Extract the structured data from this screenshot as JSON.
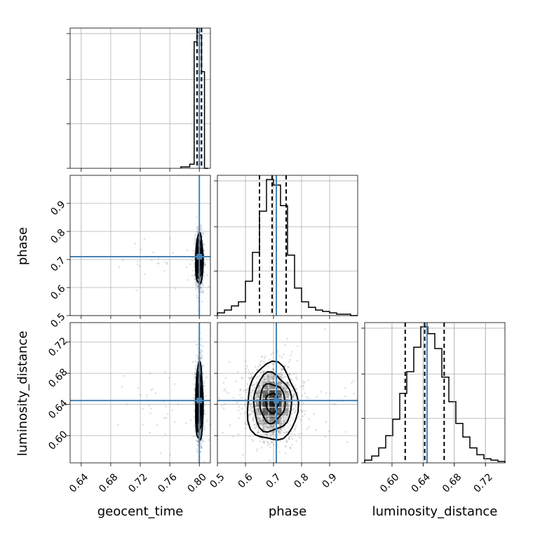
{
  "chart_data": {
    "type": "corner",
    "parameters": [
      "geocent_time",
      "phase",
      "luminosity_distance"
    ],
    "axis_labels": {
      "geocent_time": "geocent_time",
      "phase": "phase",
      "luminosity_distance": "luminosity_distance"
    },
    "ranges": {
      "geocent_time": [
        0.625,
        0.815
      ],
      "phase": [
        0.5,
        1.0
      ],
      "luminosity_distance": [
        0.565,
        0.745
      ]
    },
    "ticks": {
      "geocent_time": [
        "0.64",
        "0.68",
        "0.72",
        "0.76",
        "0.80"
      ],
      "phase": [
        "0.5",
        "0.6",
        "0.7",
        "0.8",
        "0.9"
      ],
      "luminosity_distance": [
        "0.60",
        "0.64",
        "0.68",
        "0.72"
      ]
    },
    "truths": {
      "geocent_time": 0.8,
      "phase": 0.71,
      "luminosity_distance": 0.645
    },
    "quantiles": {
      "geocent_time": [
        0.797,
        0.8,
        0.803
      ],
      "phase": [
        0.65,
        0.695,
        0.745
      ],
      "luminosity_distance": [
        0.617,
        0.642,
        0.667
      ]
    },
    "histograms": {
      "geocent_time": {
        "edges": [
          0.775,
          0.787,
          0.793,
          0.797,
          0.8,
          0.803,
          0.807,
          0.812
        ],
        "counts": [
          0.01,
          0.03,
          0.93,
          1.0,
          0.98,
          0.71,
          0.0
        ]
      },
      "phase": {
        "edges": [
          0.5,
          0.525,
          0.55,
          0.575,
          0.6,
          0.625,
          0.65,
          0.675,
          0.7,
          0.725,
          0.75,
          0.775,
          0.8,
          0.825,
          0.85,
          0.875,
          0.9,
          0.925,
          0.95,
          0.975,
          1.0
        ],
        "counts": [
          0.02,
          0.04,
          0.07,
          0.1,
          0.25,
          0.46,
          0.76,
          0.99,
          0.95,
          0.8,
          0.44,
          0.2,
          0.1,
          0.06,
          0.04,
          0.03,
          0.02,
          0.01,
          0.01,
          0.0
        ]
      },
      "luminosity_distance": {
        "edges": [
          0.565,
          0.574,
          0.583,
          0.592,
          0.601,
          0.61,
          0.619,
          0.628,
          0.637,
          0.646,
          0.655,
          0.664,
          0.673,
          0.682,
          0.691,
          0.7,
          0.709,
          0.718,
          0.727,
          0.736,
          0.745
        ],
        "counts": [
          0.02,
          0.05,
          0.11,
          0.2,
          0.32,
          0.51,
          0.67,
          0.85,
          1.0,
          0.95,
          0.84,
          0.63,
          0.45,
          0.29,
          0.19,
          0.11,
          0.06,
          0.03,
          0.02,
          0.01
        ]
      }
    },
    "scatter_2d": {
      "geocent_time_vs_phase": {
        "center": [
          0.8,
          0.7
        ],
        "spread": [
          0.0025,
          0.045
        ]
      },
      "geocent_time_vs_luminosity_distance": {
        "center": [
          0.8,
          0.642
        ],
        "spread": [
          0.0025,
          0.025
        ]
      },
      "phase_vs_luminosity_distance": {
        "center": [
          0.695,
          0.642
        ],
        "spread": [
          0.045,
          0.025
        ]
      }
    }
  }
}
